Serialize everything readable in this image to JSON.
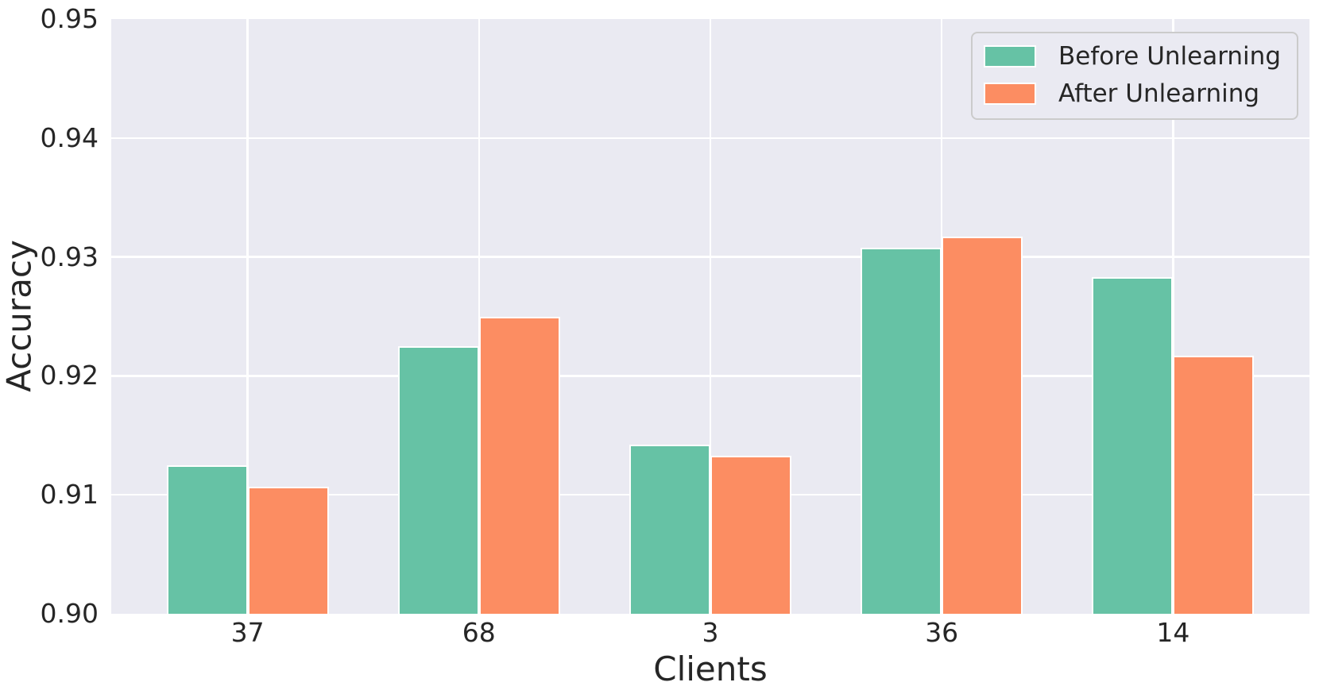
{
  "figure": {
    "background": "#ffffff",
    "plot_background": "#eaeaf2",
    "grid_color": "#ffffff",
    "text_color": "#262626",
    "legend_border_color": "#cbcbcb"
  },
  "chart_data": {
    "type": "bar",
    "title": "",
    "xlabel": "Clients",
    "ylabel": "Accuracy",
    "categories": [
      "37",
      "68",
      "3",
      "36",
      "14"
    ],
    "series": [
      {
        "name": "Before Unlearning",
        "color": "#66c2a5",
        "values": [
          0.9125,
          0.9225,
          0.9142,
          0.9308,
          0.9283
        ]
      },
      {
        "name": "After Unlearning",
        "color": "#fc8d62",
        "values": [
          0.9107,
          0.925,
          0.9133,
          0.9317,
          0.9217
        ]
      }
    ],
    "ylim": [
      0.9,
      0.95
    ],
    "yticks": [
      "0.90",
      "0.91",
      "0.92",
      "0.93",
      "0.94",
      "0.95"
    ],
    "grid": true,
    "legend_position": "upper right"
  }
}
